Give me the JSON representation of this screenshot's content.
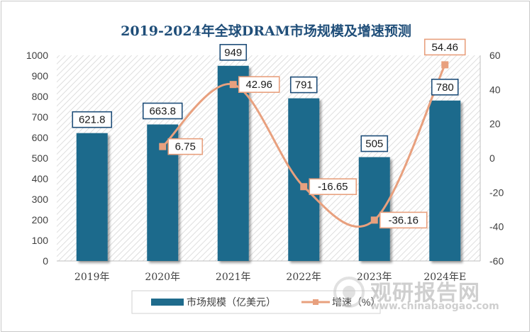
{
  "chart_data": {
    "type": "bar",
    "title": "2019-2024年全球DRAM市场规模及增速预测",
    "categories": [
      "2019年",
      "2020年",
      "2021年",
      "2022年",
      "2023年",
      "2024年E"
    ],
    "series": [
      {
        "name": "市场规模（亿美元）",
        "type": "bar",
        "axis": "left",
        "color": "#1f6b8c",
        "values": [
          621.8,
          663.8,
          949,
          791,
          505,
          780
        ],
        "labels": [
          "621.8",
          "663.8",
          "949",
          "791",
          "505",
          "780"
        ]
      },
      {
        "name": "增速（%）",
        "type": "line",
        "axis": "right",
        "color": "#e8a07e",
        "values": [
          null,
          6.75,
          42.96,
          -16.65,
          -36.16,
          54.46
        ],
        "labels": [
          "",
          "6.75",
          "42.96",
          "-16.65",
          "-36.16",
          "54.46"
        ]
      }
    ],
    "y_left": {
      "min": 0,
      "max": 1000,
      "ticks": [
        0,
        100,
        200,
        300,
        400,
        500,
        600,
        700,
        800,
        900,
        1000
      ]
    },
    "y_right": {
      "min": -60,
      "max": 60,
      "ticks": [
        -60,
        -40,
        -20,
        0,
        20,
        40,
        60
      ]
    },
    "legend_position": "bottom",
    "grid": false
  },
  "colors": {
    "bar": "#1f6b8c",
    "line": "#e8a07e",
    "bar_label_border": "#1f4e79",
    "line_label_border": "#e8a07e",
    "title": "#1f4e79"
  },
  "watermark": {
    "title": "观研报告网",
    "url": "www.chinabaogao.com",
    "icon": "watermark-logo-icon"
  }
}
